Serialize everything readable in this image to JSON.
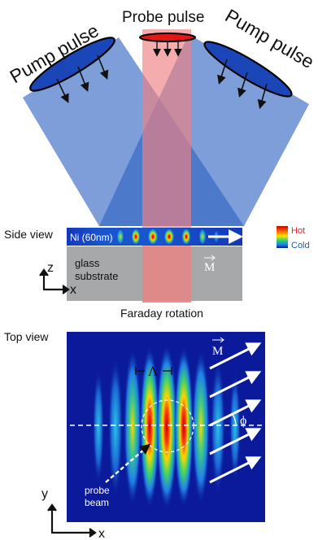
{
  "labels": {
    "pump_left": "Pump pulse",
    "pump_right": "Pump pulse",
    "probe": "Probe pulse",
    "side_view": "Side view",
    "ni_layer": "Ni (60nm)",
    "hot": "Hot",
    "cold": "Cold",
    "magnetization": "M",
    "glass_line1": "glass",
    "glass_line2": "substrate",
    "axis_z": "z",
    "axis_x_side": "x",
    "faraday": "Faraday rotation",
    "top_view": "Top view",
    "lambda": "Λ",
    "magnetization_top": "M",
    "phi": "ϕ",
    "axis_y": "y",
    "probe_beam_line1": "probe",
    "probe_beam_line2": "beam",
    "axis_x_top": "x"
  },
  "colors": {
    "pump_beam": "#3a6fc4",
    "probe_beam": "#f08080",
    "substrate": "#a6a8aa",
    "field_background": "#0a1a9a",
    "hot_label": "#e8212a",
    "cold_label": "#1f5bbf"
  }
}
